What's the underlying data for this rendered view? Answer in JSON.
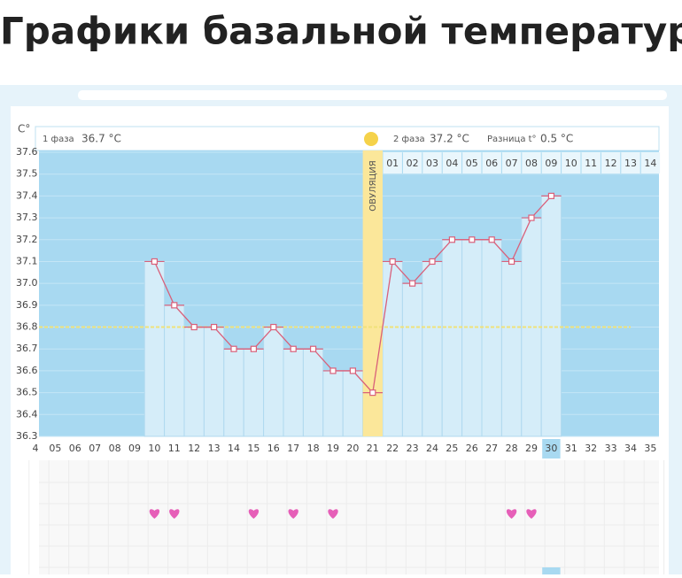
{
  "header": {
    "title": "Графики базальной температуры"
  },
  "chart_data": {
    "type": "line",
    "unit_label": "С°",
    "phase1_label": "1 фаза",
    "phase1_value": "36.7 °С",
    "phase2_label": "2 фаза",
    "phase2_value": "37.2 °С",
    "diff_label": "Разница t°",
    "diff_value": "0.5 °С",
    "ovulation_label": "ОВУЛЯЦИЯ",
    "ovulation_day": "21",
    "categories": [
      "4",
      "05",
      "06",
      "07",
      "08",
      "09",
      "10",
      "11",
      "12",
      "13",
      "14",
      "15",
      "16",
      "17",
      "18",
      "19",
      "20",
      "21",
      "22",
      "23",
      "24",
      "25",
      "26",
      "27",
      "28",
      "29",
      "30",
      "31",
      "32",
      "33",
      "34",
      "35"
    ],
    "phase2_days": [
      "01",
      "02",
      "03",
      "04",
      "05",
      "06",
      "07",
      "08",
      "09",
      "10",
      "11",
      "12",
      "13",
      "14"
    ],
    "values": [
      null,
      null,
      null,
      null,
      null,
      null,
      37.1,
      36.9,
      36.8,
      36.8,
      36.7,
      36.7,
      36.8,
      36.7,
      36.7,
      36.6,
      36.6,
      36.5,
      37.1,
      37.0,
      37.1,
      37.2,
      37.2,
      37.2,
      37.1,
      37.3,
      37.4,
      null,
      null,
      null,
      null,
      null
    ],
    "color": "#d9607a",
    "coverline": 36.8,
    "current_day": "30",
    "heart_days": [
      "10",
      "11",
      "15",
      "17",
      "19",
      "28",
      "29"
    ],
    "ylim": [
      36.3,
      37.6
    ],
    "yticks": [
      36.3,
      36.4,
      36.5,
      36.6,
      36.7,
      36.8,
      36.9,
      {
        "value": 37.0,
        "label": "37.0"
      },
      37.1,
      37.2,
      37.3,
      37.4,
      37.5,
      37.6
    ],
    "grid": true
  }
}
